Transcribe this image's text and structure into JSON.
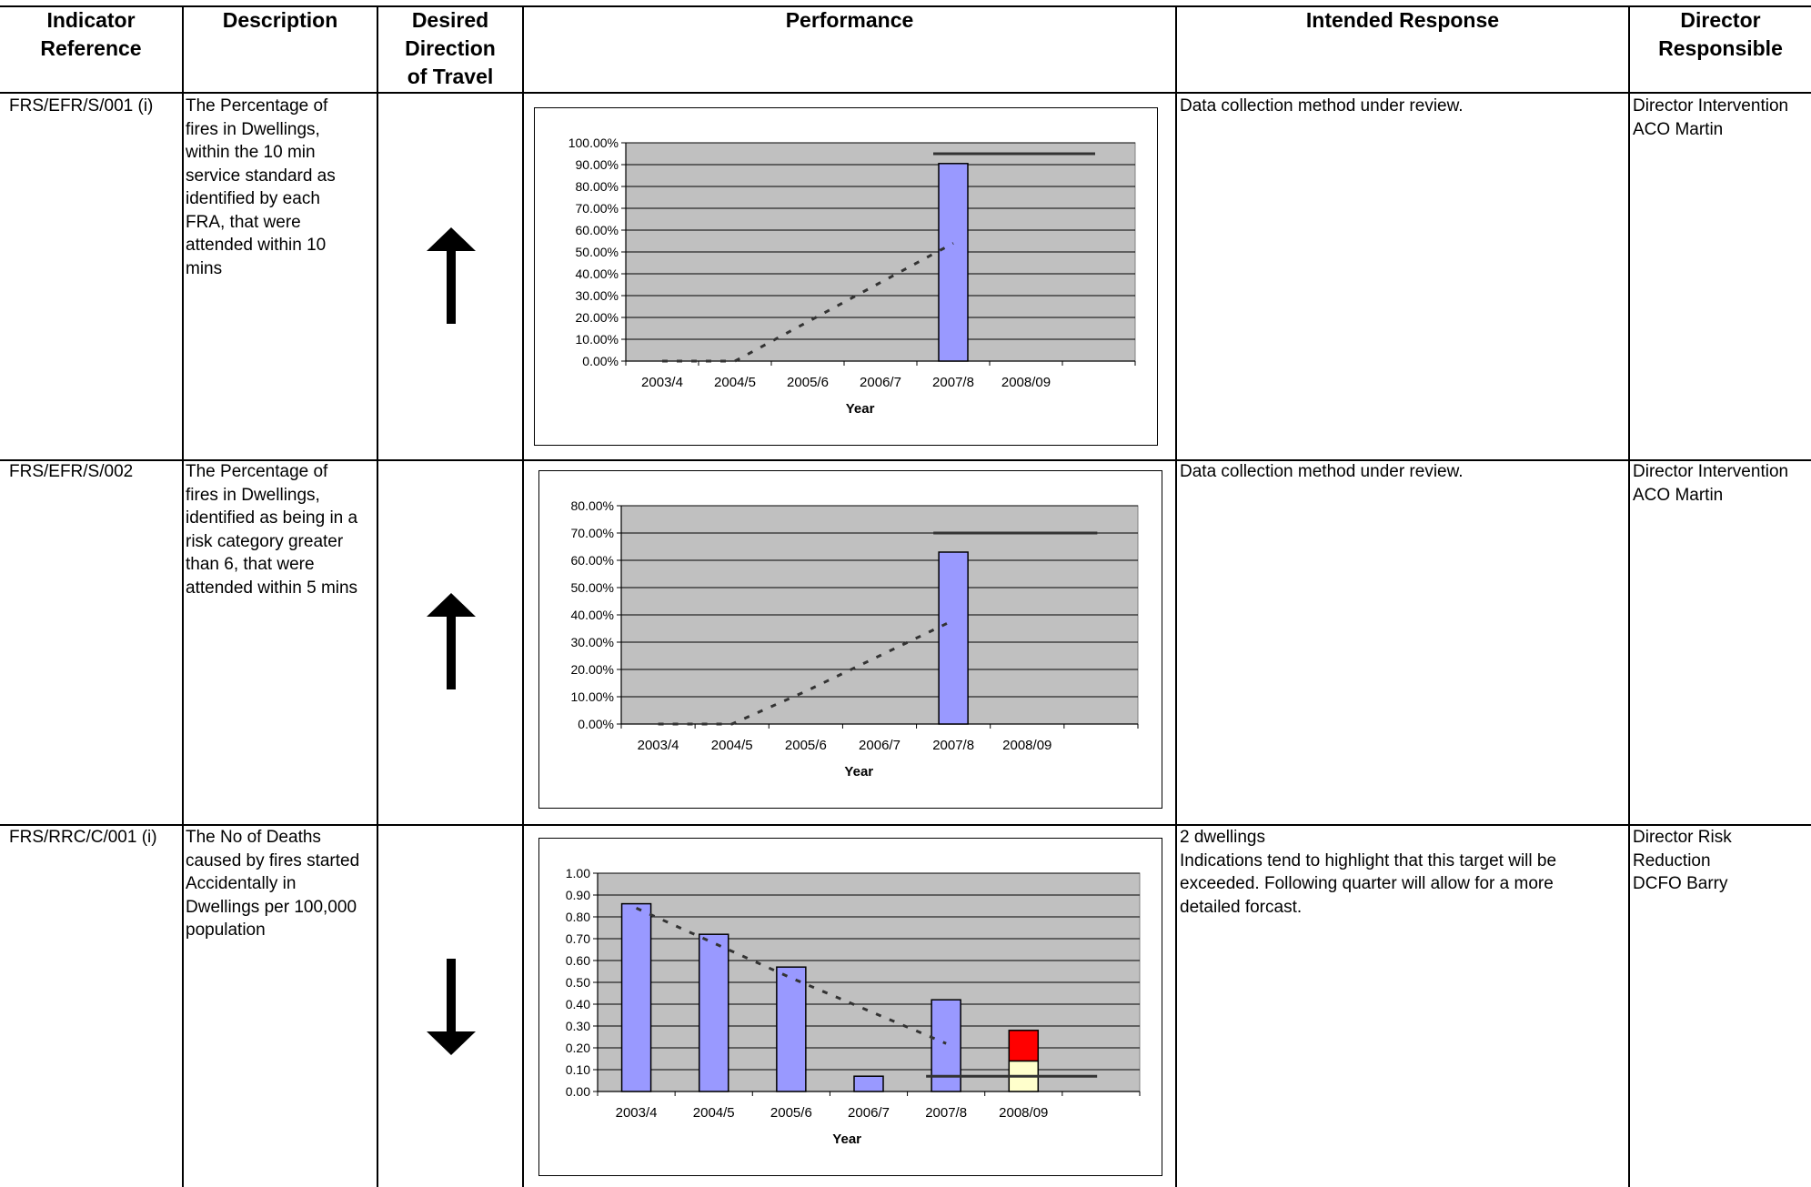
{
  "headers": {
    "indicator_reference": "Indicator\nReference",
    "description": "Description",
    "direction": "Desired\nDirection\nof Travel",
    "performance": "Performance",
    "intended_response": "Intended Response",
    "director": "Director\nResponsible"
  },
  "rows": [
    {
      "reference": "FRS/EFR/S/001 (i)",
      "description": "The Percentage of\nfires in Dwellings,\nwithin the 10 min\nservice standard as\nidentified by each\nFRA, that were\nattended within 10\nmins",
      "direction": "up",
      "response": "Data collection method under review.",
      "director": "Director Intervention\nACO Martin"
    },
    {
      "reference": "FRS/EFR/S/002",
      "description": "The Percentage of\nfires in Dwellings,\nidentified as being in a\nrisk category greater\nthan 6, that were\nattended within 5 mins",
      "direction": "up",
      "response": "Data collection method under review.",
      "director": "Director Intervention\nACO Martin"
    },
    {
      "reference": "FRS/RRC/C/001 (i)",
      "description": "The No of Deaths\ncaused by fires started\nAccidentally in\nDwellings per 100,000\npopulation",
      "direction": "down",
      "response": "2 dwellings\nIndications tend to highlight that this target will be\nexceeded. Following quarter will allow for a more\ndetailed forcast.",
      "director": "Director Risk\nReduction\nDCFO Barry"
    }
  ],
  "colors": {
    "bar": "#9999ff",
    "plot_bg": "#c0c0c0",
    "red": "#ff0000",
    "cream": "#ffffcc",
    "target": "#333333"
  },
  "chart_data": [
    {
      "type": "bar",
      "categories": [
        "2003/4",
        "2004/5",
        "2005/6",
        "2006/7",
        "2007/8",
        "2008/09"
      ],
      "values": [
        null,
        null,
        null,
        null,
        0.905,
        null
      ],
      "target_line": {
        "from_index": 4,
        "to_index": 6,
        "value": 0.95
      },
      "trend": [
        0.0,
        0.0,
        0.18,
        0.36,
        0.54
      ],
      "xlabel": "Year",
      "ylim": [
        0,
        1.0
      ],
      "yticks": [
        "0.00%",
        "10.00%",
        "20.00%",
        "30.00%",
        "40.00%",
        "50.00%",
        "60.00%",
        "70.00%",
        "80.00%",
        "90.00%",
        "100.00%"
      ]
    },
    {
      "type": "bar",
      "categories": [
        "2003/4",
        "2004/5",
        "2005/6",
        "2006/7",
        "2007/8",
        "2008/09"
      ],
      "values": [
        null,
        null,
        null,
        null,
        0.63,
        null
      ],
      "target_line": {
        "from_index": 4,
        "to_index": 6,
        "value": 0.7
      },
      "trend": [
        0.0,
        0.0,
        0.12,
        0.25,
        0.38
      ],
      "xlabel": "Year",
      "ylim": [
        0,
        0.8
      ],
      "yticks": [
        "0.00%",
        "10.00%",
        "20.00%",
        "30.00%",
        "40.00%",
        "50.00%",
        "60.00%",
        "70.00%",
        "80.00%"
      ]
    },
    {
      "type": "bar",
      "categories": [
        "2003/4",
        "2004/5",
        "2005/6",
        "2006/7",
        "2007/8",
        "2008/09"
      ],
      "values": [
        0.86,
        0.72,
        0.57,
        0.07,
        0.42,
        null
      ],
      "stacked_2008": {
        "cream": 0.14,
        "red": 0.14
      },
      "target_line": {
        "from_index": 4,
        "to_index": 6,
        "value": 0.07
      },
      "trend": [
        0.84,
        0.68,
        0.52,
        0.37,
        0.22
      ],
      "xlabel": "Year",
      "ylim": [
        0,
        1.0
      ],
      "yticks": [
        "0.00",
        "0.10",
        "0.20",
        "0.30",
        "0.40",
        "0.50",
        "0.60",
        "0.70",
        "0.80",
        "0.90",
        "1.00"
      ]
    }
  ]
}
